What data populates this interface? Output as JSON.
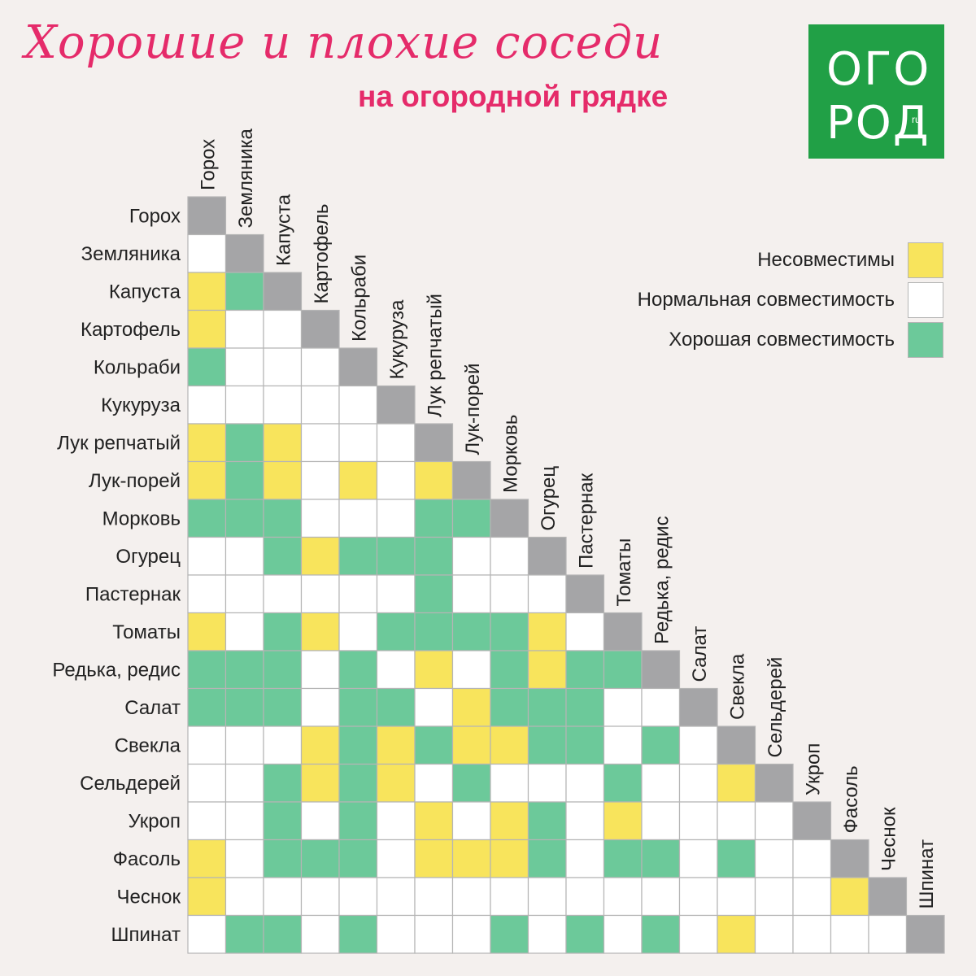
{
  "header": {
    "title": "Хорошие и плохие соседи",
    "subtitle": "на огородной грядке"
  },
  "logo": {
    "line1": "ОГО",
    "line2": "РОД",
    "suffix": "ru"
  },
  "legend": [
    {
      "label": "Несовместимы",
      "color": "#f8e45c"
    },
    {
      "label": "Нормальная совместимость",
      "color": "#ffffff"
    },
    {
      "label": "Хорошая совместимость",
      "color": "#6cc99a"
    }
  ],
  "colors": {
    "Y": "#f8e45c",
    "G": "#6cc99a",
    "W": "#ffffff",
    "D": "#a5a5a7",
    "grid": "#b5b5b5",
    "text": "#222222"
  },
  "chart_data": {
    "type": "heatmap",
    "codes": {
      "Y": "Несовместимы",
      "W": "Нормальная совместимость",
      "G": "Хорошая совместимость",
      "D": "diagonal"
    },
    "labels": [
      "Горох",
      "Земляника",
      "Капуста",
      "Картофель",
      "Кольраби",
      "Кукуруза",
      "Лук репчатый",
      "Лук-порей",
      "Морковь",
      "Огурец",
      "Пастернак",
      "Томаты",
      "Редька, редис",
      "Салат",
      "Свекла",
      "Сельдерей",
      "Укроп",
      "Фасоль",
      "Чеснок",
      "Шпинат"
    ],
    "rows": [
      "D",
      "WD",
      "YGD",
      "YWWD",
      "GWWWD",
      "WWWWWD",
      "YGYWWWD",
      "YGYWYWYD",
      "GGGWWWGGD",
      "WWGYGGGWWD",
      "WWWWWWGWWWD",
      "YWGYWGGGGYWD",
      "GGGWGWYWGYGGD",
      "GGGWGGWYGGGWWD",
      "WWWYGYGYYGGWGWD",
      "WWGYGYWGWWWGWWYD",
      "WWGWGWYWYGWYWWWWD",
      "YWGGGWYYYGWGGWGWWD",
      "YWWWWWWWWWWWWWWWWYD",
      "WGGWGWWWGWGWGWYWWWWD"
    ]
  }
}
